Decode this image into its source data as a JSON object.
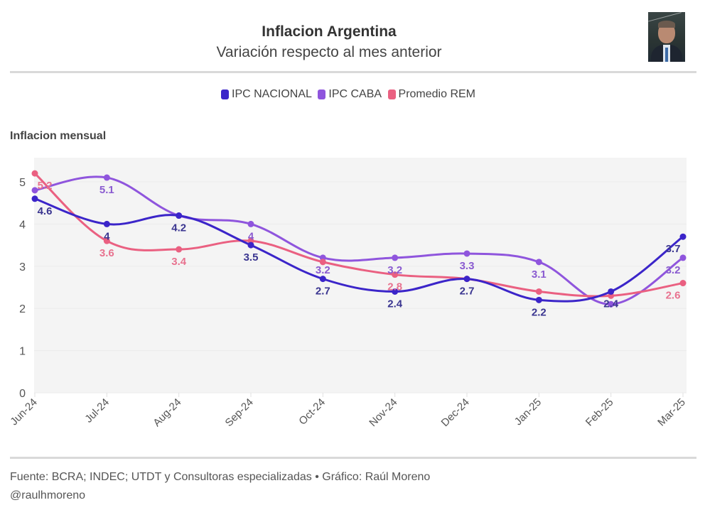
{
  "header": {
    "title": "Inflacion Argentina",
    "subtitle": "Variación respecto al mes anterior",
    "avatar": "author-photo"
  },
  "legend": [
    {
      "label": "IPC NACIONAL",
      "color": "#3b25c9"
    },
    {
      "label": "IPC CABA",
      "color": "#8f55dd"
    },
    {
      "label": "Promedio REM",
      "color": "#ea6081"
    }
  ],
  "footer": {
    "source": "Fuente: BCRA; INDEC; UTDT y Consultoras especializadas • Gráfico: Raúl Moreno",
    "handle": "@raulhmoreno"
  },
  "chart_data": {
    "type": "line",
    "title": "Inflacion mensual",
    "xlabel": "",
    "ylabel": "Inflacion mensual",
    "x": [
      "Jun-24",
      "Jul-24",
      "Aug-24",
      "Sep-24",
      "Oct-24",
      "Nov-24",
      "Dec-24",
      "Jan-25",
      "Feb-25",
      "Mar-25"
    ],
    "ylim": [
      0,
      5.5
    ],
    "yticks": [
      0,
      1,
      2,
      3,
      4,
      5
    ],
    "grid": true,
    "legend_position": "top-center",
    "series": [
      {
        "name": "IPC NACIONAL",
        "color": "#3b25c9",
        "label_color": "#3a3590",
        "values": [
          4.6,
          4.0,
          4.2,
          3.5,
          2.7,
          2.4,
          2.7,
          2.2,
          2.4,
          3.7
        ],
        "labels": [
          "4.6",
          "4",
          "4.2",
          "3.5",
          "2.7",
          "2.4",
          "2.7",
          "2.2",
          "2.4",
          "3.7"
        ]
      },
      {
        "name": "IPC CABA",
        "color": "#8f55dd",
        "label_color": "#8a5bd0",
        "values": [
          4.8,
          5.1,
          4.2,
          4.0,
          3.2,
          3.2,
          3.3,
          3.1,
          2.1,
          3.2
        ],
        "labels": [
          "",
          "5.1",
          "",
          "4",
          "3.2",
          "3.2",
          "3.3",
          "3.1",
          "",
          "3.2"
        ]
      },
      {
        "name": "Promedio REM",
        "color": "#ea6081",
        "label_color": "#e8728f",
        "values": [
          5.2,
          3.6,
          3.4,
          3.6,
          3.1,
          2.8,
          2.7,
          2.4,
          2.3,
          2.6
        ],
        "labels": [
          "5.2",
          "3.6",
          "3.4",
          "",
          "",
          "2.8",
          "",
          "",
          "",
          "2.6"
        ]
      }
    ]
  }
}
